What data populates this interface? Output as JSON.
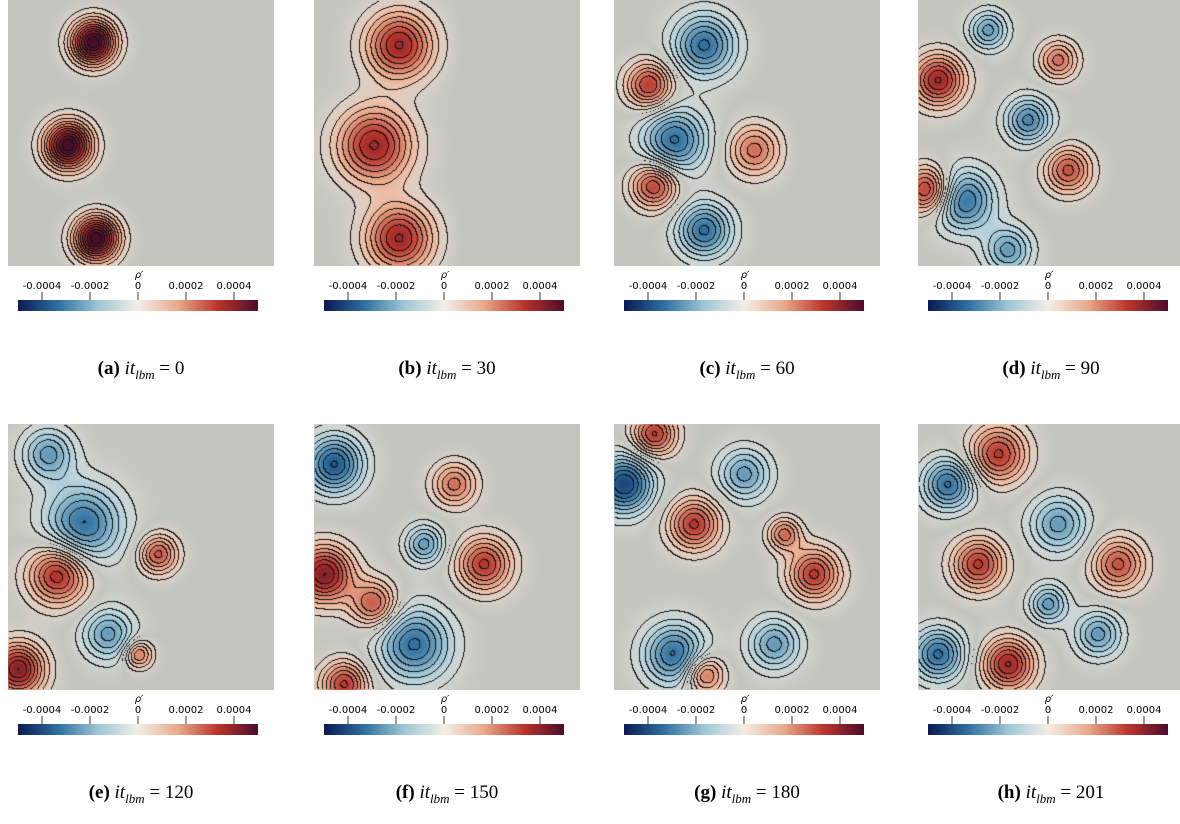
{
  "colorbar": {
    "title": "ρ′",
    "ticks": [
      "-0.0004",
      "-0.0002",
      "0",
      "0.0002",
      "0.0004"
    ],
    "gradient": [
      "#0b1a55",
      "#2e6f9e",
      "#9fc6d6",
      "#f3efe6",
      "#e9a88b",
      "#b8352c",
      "#4b0c2a"
    ],
    "background": "#c3c5bf"
  },
  "panels": [
    {
      "label": "(a)",
      "symbol": "it",
      "subscript": "lbm",
      "equals": "=",
      "value": "0"
    },
    {
      "label": "(b)",
      "symbol": "it",
      "subscript": "lbm",
      "equals": "=",
      "value": "30"
    },
    {
      "label": "(c)",
      "symbol": "it",
      "subscript": "lbm",
      "equals": "=",
      "value": "60"
    },
    {
      "label": "(d)",
      "symbol": "it",
      "subscript": "lbm",
      "equals": "=",
      "value": "90"
    },
    {
      "label": "(e)",
      "symbol": "it",
      "subscript": "lbm",
      "equals": "=",
      "value": "120"
    },
    {
      "label": "(f)",
      "symbol": "it",
      "subscript": "lbm",
      "equals": "=",
      "value": "150"
    },
    {
      "label": "(g)",
      "symbol": "it",
      "subscript": "lbm",
      "equals": "=",
      "value": "180"
    },
    {
      "label": "(h)",
      "symbol": "it",
      "subscript": "lbm",
      "equals": "=",
      "value": "201"
    }
  ]
}
